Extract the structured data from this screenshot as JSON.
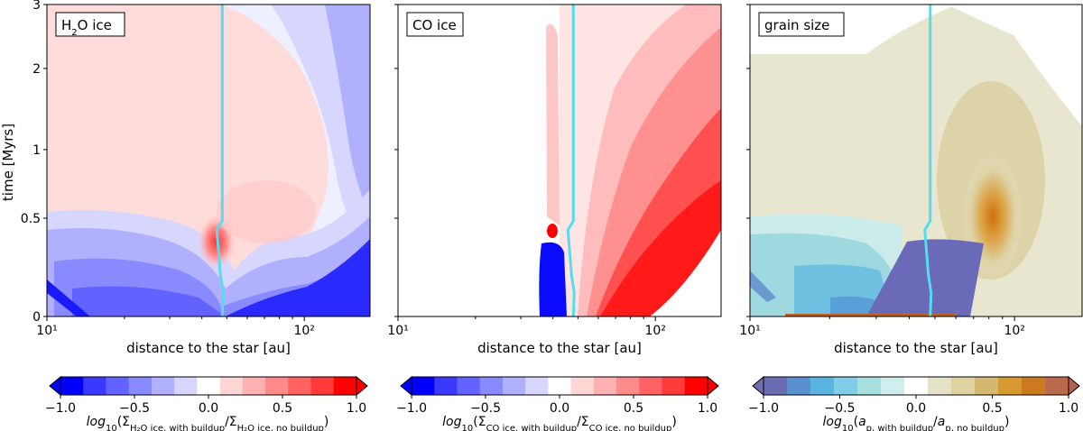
{
  "chart_data": [
    {
      "type": "heatmap",
      "title": "H₂O ice",
      "xlabel": "distance to the star [au]",
      "ylabel": "time [Myrs]",
      "xscale": "log",
      "xlim": [
        10,
        180
      ],
      "ylim": [
        0,
        3
      ],
      "x_ticks": [
        "10¹",
        "10²"
      ],
      "x_tick_values": [
        10,
        100
      ],
      "y_ticks": [
        "0",
        "0.5",
        "1",
        "2",
        "3"
      ],
      "y_tick_values": [
        0,
        0.5,
        1,
        2,
        3
      ],
      "boundary_line_au": 48,
      "colorbar": {
        "label": "log₁₀(ΣH₂O ice, with buildup/ΣH₂O ice, no buildup)",
        "ticks": [
          "−1.0",
          "−0.5",
          "0.0",
          "0.5",
          "1.0"
        ],
        "tick_values": [
          -1.0,
          -0.5,
          0.0,
          0.5,
          1.0
        ],
        "colormap": "bwr",
        "colors": [
          "#0000ff",
          "#3a3aff",
          "#6262ff",
          "#8a8aff",
          "#b0b0ff",
          "#d6d6ff",
          "#ffffff",
          "#ffd6d6",
          "#ffb0b0",
          "#ff8a8a",
          "#ff6262",
          "#ff3a3a",
          "#ff0000"
        ],
        "extend_low": "#0000ff",
        "extend_high": "#ff0000"
      }
    },
    {
      "type": "heatmap",
      "title": "CO ice",
      "xlabel": "distance to the star [au]",
      "xscale": "log",
      "xlim": [
        10,
        180
      ],
      "ylim": [
        0,
        3
      ],
      "x_ticks": [
        "10¹",
        "10²"
      ],
      "x_tick_values": [
        10,
        100
      ],
      "boundary_line_au": 48,
      "colorbar": {
        "label": "log₁₀(ΣCO ice, with buildup/ΣCO ice, no buildup)",
        "ticks": [
          "−1.0",
          "−0.5",
          "0.0",
          "0.5",
          "1.0"
        ],
        "tick_values": [
          -1.0,
          -0.5,
          0.0,
          0.5,
          1.0
        ],
        "colormap": "bwr",
        "colors": [
          "#0000ff",
          "#3a3aff",
          "#6262ff",
          "#8a8aff",
          "#b0b0ff",
          "#d6d6ff",
          "#ffffff",
          "#ffd6d6",
          "#ffb0b0",
          "#ff8a8a",
          "#ff6262",
          "#ff3a3a",
          "#ff0000"
        ],
        "extend_low": "#0000ff",
        "extend_high": "#ff0000"
      }
    },
    {
      "type": "heatmap",
      "title": "grain size",
      "xlabel": "distance to the star [au]",
      "xscale": "log",
      "xlim": [
        10,
        180
      ],
      "ylim": [
        0,
        3
      ],
      "x_ticks": [
        "10¹",
        "10²"
      ],
      "x_tick_values": [
        10,
        100
      ],
      "boundary_line_au": 48,
      "colorbar": {
        "label": "log₁₀(a p, with buildup/a p, no buildup)",
        "ticks": [
          "−1.0",
          "−0.5",
          "0.0",
          "0.5",
          "1.0"
        ],
        "tick_values": [
          -1.0,
          -0.5,
          0.0,
          0.5,
          1.0
        ],
        "colormap": "brown-blue",
        "colors": [
          "#6b6bb4",
          "#5a8fd0",
          "#5ab4e0",
          "#7fcde8",
          "#a6e0e0",
          "#d0eeee",
          "#ffffff",
          "#e6e2c8",
          "#ddd2a0",
          "#d4b870",
          "#d69a30",
          "#cc7a20",
          "#b86a4a"
        ],
        "extend_low": "#7070b0",
        "extend_high": "#b46050"
      }
    }
  ]
}
